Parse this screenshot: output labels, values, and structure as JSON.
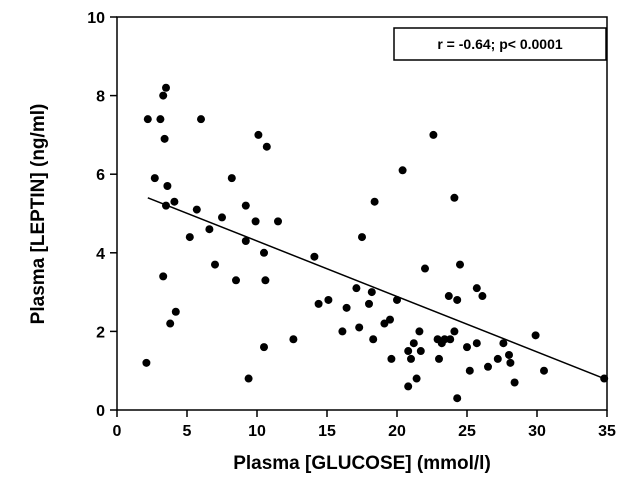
{
  "chart_data": {
    "type": "scatter",
    "x_label": "Plasma  [GLUCOSE]  (mmol/l)",
    "y_label": "Plasma  [LEPTIN]  (ng/ml)",
    "annotation": "r  =  -0.64;  p<  0.0001",
    "color": "#000000",
    "xlim": [
      0,
      35
    ],
    "xticks": [
      0,
      5,
      10,
      15,
      20,
      25,
      30,
      35
    ],
    "ylim": [
      0,
      10
    ],
    "yticks": [
      0,
      2,
      4,
      6,
      8,
      10
    ],
    "x": [
      2.2,
      2.1,
      2.7,
      3.1,
      3.3,
      3.5,
      3.4,
      3.6,
      3.5,
      3.3,
      3.8,
      4.1,
      4.2,
      5.2,
      5.7,
      6.0,
      6.6,
      7.0,
      7.5,
      8.2,
      8.5,
      9.2,
      9.2,
      9.4,
      9.9,
      10.1,
      10.5,
      10.5,
      10.6,
      10.7,
      11.5,
      12.6,
      14.1,
      14.4,
      15.1,
      16.1,
      16.4,
      17.1,
      17.3,
      17.5,
      18.0,
      18.2,
      18.3,
      18.4,
      19.1,
      19.5,
      19.6,
      20.0,
      20.4,
      20.8,
      20.8,
      21.0,
      21.2,
      21.4,
      21.6,
      21.7,
      22.0,
      22.6,
      22.9,
      23.0,
      23.2,
      23.4,
      23.7,
      23.8,
      24.1,
      24.1,
      24.3,
      24.3,
      24.5,
      25.0,
      25.2,
      25.7,
      25.7,
      26.1,
      26.5,
      27.2,
      27.6,
      28.0,
      28.1,
      28.4,
      29.9,
      30.5,
      34.8
    ],
    "values": [
      7.4,
      1.2,
      5.9,
      7.4,
      8.0,
      8.2,
      6.9,
      5.7,
      5.2,
      3.4,
      2.2,
      5.3,
      2.5,
      4.4,
      5.1,
      7.4,
      4.6,
      3.7,
      4.9,
      5.9,
      3.3,
      5.2,
      4.3,
      0.8,
      4.8,
      7.0,
      4.0,
      1.6,
      3.3,
      6.7,
      4.8,
      1.8,
      3.9,
      2.7,
      2.8,
      2.0,
      2.6,
      3.1,
      2.1,
      4.4,
      2.7,
      3.0,
      1.8,
      5.3,
      2.2,
      2.3,
      1.3,
      2.8,
      6.1,
      1.5,
      0.6,
      1.3,
      1.7,
      0.8,
      2.0,
      1.5,
      3.6,
      7.0,
      1.8,
      1.3,
      1.7,
      1.8,
      2.9,
      1.8,
      5.4,
      2.0,
      0.3,
      2.8,
      3.7,
      1.6,
      1.0,
      3.1,
      1.7,
      2.9,
      1.1,
      1.3,
      1.7,
      1.4,
      1.2,
      0.7,
      1.9,
      1.0,
      0.8
    ],
    "fit_line": {
      "x": [
        2.2,
        34.8
      ],
      "values": [
        5.4,
        0.8
      ]
    }
  }
}
